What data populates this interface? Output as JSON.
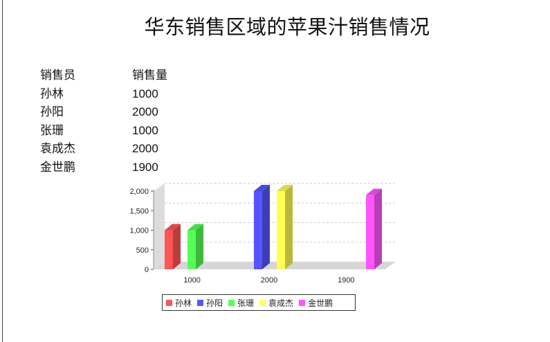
{
  "title": "华东销售区域的苹果汁销售情况",
  "table": {
    "headers": [
      "销售员",
      "销售量"
    ],
    "rows": [
      [
        "孙林",
        "1000"
      ],
      [
        "孙阳",
        "2000"
      ],
      [
        "张珊",
        "1000"
      ],
      [
        "袁成杰",
        "2000"
      ],
      [
        "金世鹏",
        "1900"
      ]
    ]
  },
  "chart_data": {
    "type": "bar",
    "title": "",
    "xlabel": "",
    "ylabel": "",
    "categories": [
      "1000",
      "2000",
      "1900"
    ],
    "series": [
      {
        "name": "孙林",
        "color": "#ff5555",
        "values": [
          1000,
          null,
          null
        ]
      },
      {
        "name": "孙阳",
        "color": "#5555ff",
        "values": [
          null,
          2000,
          null
        ]
      },
      {
        "name": "张珊",
        "color": "#55ff55",
        "values": [
          1000,
          null,
          null
        ]
      },
      {
        "name": "袁成杰",
        "color": "#ffff55",
        "values": [
          null,
          2000,
          null
        ]
      },
      {
        "name": "金世鹏",
        "color": "#ff55ff",
        "values": [
          null,
          null,
          1900
        ]
      }
    ],
    "ylim": [
      0,
      2000
    ],
    "yticks": [
      0,
      500,
      1000,
      1500,
      2000
    ],
    "ytick_labels": [
      "0",
      "500",
      "1,000",
      "1,500",
      "2,000"
    ],
    "grid": true,
    "legend": "bottom",
    "style": "3d"
  }
}
